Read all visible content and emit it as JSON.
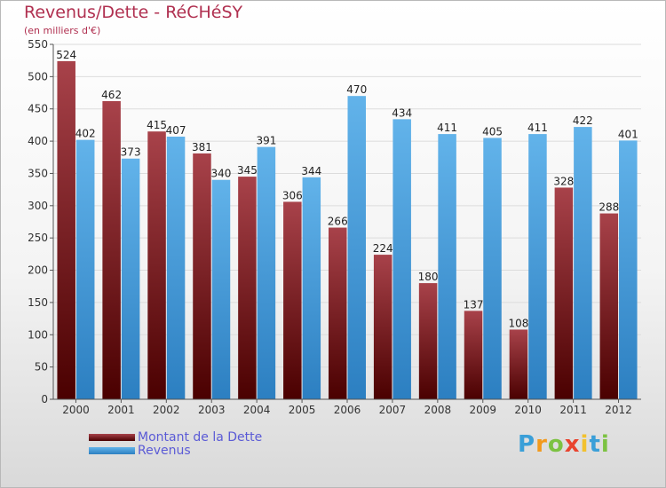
{
  "colors": {
    "dette_top": "#a8424a",
    "dette_bottom": "#4a0000",
    "revenus_top": "#62b3ea",
    "revenus_bottom": "#2c7fc1",
    "title": "#b03050",
    "legend_text": "#5b5bd6"
  },
  "logo": {
    "letters": [
      "P",
      "r",
      "o",
      "x",
      "i",
      "t",
      "i"
    ],
    "colors": [
      "#3a9fd8",
      "#f29a1d",
      "#7cc242",
      "#e9432e",
      "#f2c12e",
      "#3a9fd8",
      "#7cc242"
    ]
  },
  "chart_data": {
    "type": "bar",
    "title": "Revenus/Dette - RéCHéSY",
    "subtitle": "(en milliers d'€)",
    "xlabel": "",
    "ylabel": "",
    "ylim": [
      0,
      550
    ],
    "yticks": [
      0,
      50,
      100,
      150,
      200,
      250,
      300,
      350,
      400,
      450,
      500,
      550
    ],
    "grid": true,
    "legend_position": "bottom-left",
    "categories": [
      "2000",
      "2001",
      "2002",
      "2003",
      "2004",
      "2005",
      "2006",
      "2007",
      "2008",
      "2009",
      "2010",
      "2011",
      "2012"
    ],
    "series": [
      {
        "name": "Montant de la Dette",
        "values": [
          524,
          462,
          415,
          381,
          345,
          306,
          266,
          224,
          180,
          137,
          108,
          328,
          288
        ]
      },
      {
        "name": "Revenus",
        "values": [
          402,
          373,
          407,
          340,
          391,
          344,
          470,
          434,
          411,
          405,
          411,
          422,
          401
        ]
      }
    ]
  }
}
